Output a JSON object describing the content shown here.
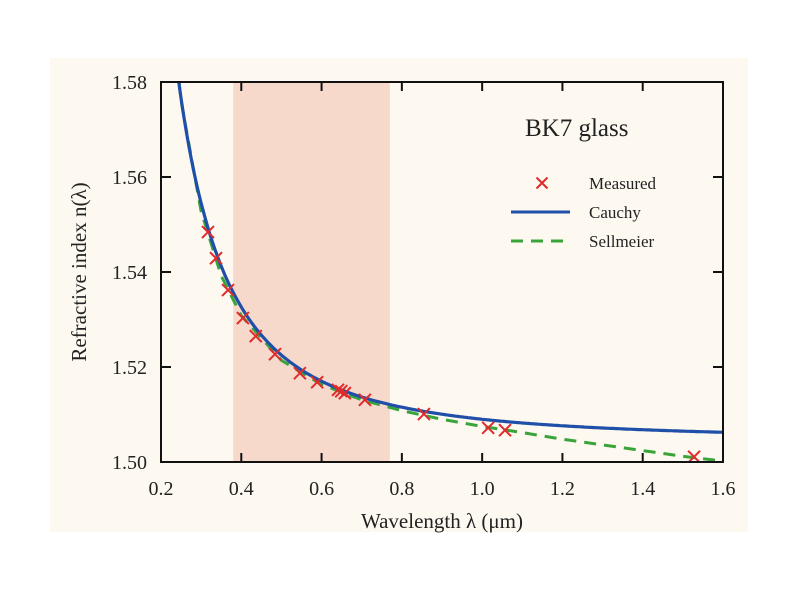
{
  "chart_data": {
    "type": "line",
    "title": "BK7 glass",
    "xlabel": "Wavelength λ (μm)",
    "ylabel": "Refractive index n(λ)",
    "xlim": [
      0.2,
      1.6
    ],
    "ylim": [
      1.5,
      1.58
    ],
    "xticks": [
      "0.2",
      "0.4",
      "0.6",
      "0.8",
      "1.0",
      "1.2",
      "1.4",
      "1.6"
    ],
    "yticks": [
      "1.50",
      "1.52",
      "1.54",
      "1.56",
      "1.58"
    ],
    "grid": false,
    "legend_placement": "top-right",
    "shaded_region": {
      "x": [
        0.38,
        0.77
      ],
      "color": "#f6d3c4"
    },
    "colors": {
      "measured": "#e02b2b",
      "cauchy": "#1f4fa8",
      "sellmeier": "#3aa43a"
    },
    "series": [
      {
        "name": "Measured",
        "type": "scatter",
        "marker": "x",
        "x": [
          0.317,
          0.337,
          0.367,
          0.404,
          0.436,
          0.484,
          0.546,
          0.589,
          0.641,
          0.649,
          0.658,
          0.708,
          0.855,
          1.015,
          1.057,
          1.528
        ],
        "y": [
          1.5484,
          1.5429,
          1.5362,
          1.5303,
          1.5265,
          1.5227,
          1.5187,
          1.5168,
          1.5152,
          1.5149,
          1.5145,
          1.5131,
          1.5101,
          1.5072,
          1.5067,
          1.5011
        ]
      },
      {
        "name": "Cauchy",
        "type": "line",
        "style": "solid",
        "A": 1.5045,
        "B": 0.0045
      },
      {
        "name": "Sellmeier",
        "type": "line",
        "style": "dashed",
        "x": [
          0.245,
          0.25,
          0.3,
          0.35,
          0.4,
          0.5,
          0.6,
          0.7,
          0.8,
          0.9,
          1.0,
          1.1,
          1.2,
          1.3,
          1.4,
          1.5,
          1.6
        ],
        "y": [
          1.58,
          1.576,
          1.5528,
          1.5392,
          1.5308,
          1.5214,
          1.5163,
          1.5131,
          1.5108,
          1.509,
          1.5075,
          1.5062,
          1.5048,
          1.5036,
          1.5024,
          1.5012,
          1.5002
        ]
      }
    ]
  }
}
